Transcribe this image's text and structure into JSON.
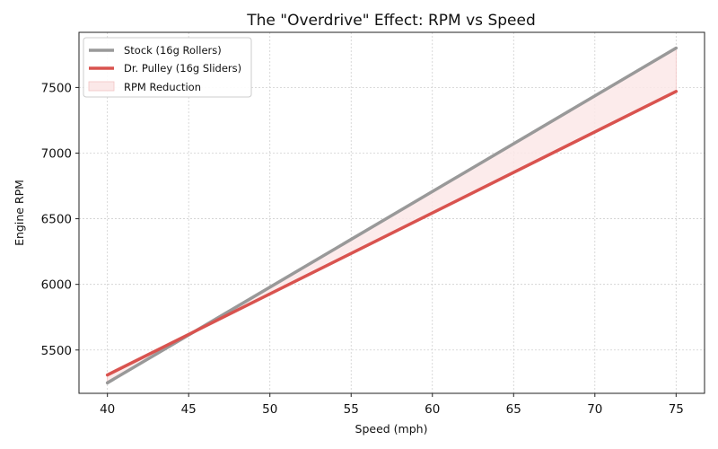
{
  "chart_data": {
    "type": "line",
    "title": "The \"Overdrive\" Effect: RPM vs Speed",
    "xlabel": "Speed (mph)",
    "ylabel": "Engine RPM",
    "xlim": [
      38.25,
      76.75
    ],
    "ylim": [
      5170,
      7920
    ],
    "x_ticks": [
      40,
      45,
      50,
      55,
      60,
      65,
      70,
      75
    ],
    "y_ticks": [
      5500,
      6000,
      6500,
      7000,
      7500
    ],
    "x_tick_labels": [
      "40",
      "45",
      "50",
      "55",
      "60",
      "65",
      "70",
      "75"
    ],
    "y_tick_labels": [
      "5500",
      "6000",
      "6500",
      "7000",
      "7500"
    ],
    "grid": true,
    "legend_position": "top-left",
    "series": [
      {
        "name": "Stock (16g Rollers)",
        "color": "#999999",
        "x": [
          40,
          75
        ],
        "y": [
          5250,
          7800
        ]
      },
      {
        "name": "Dr. Pulley (16g Sliders)",
        "color": "#d9534f",
        "x": [
          40,
          75
        ],
        "y": [
          5310,
          7470
        ]
      }
    ],
    "fill_between": {
      "name": "RPM Reduction",
      "color": "#fbe8e8",
      "edge_color": "#f2c4c4"
    }
  }
}
